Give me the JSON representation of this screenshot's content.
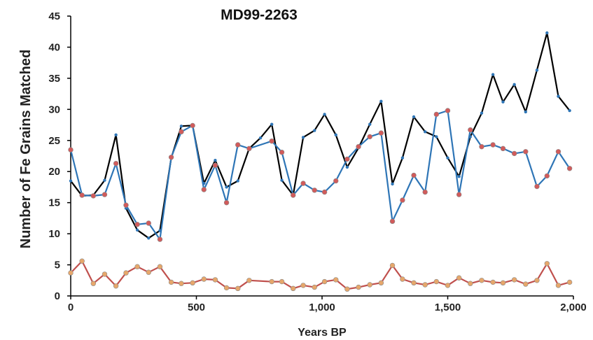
{
  "chart_data": {
    "type": "line",
    "title": "MD99-2263",
    "xlabel": "Years BP",
    "ylabel": "Number of Fe Grains Matched",
    "xlim": [
      0,
      2000
    ],
    "ylim": [
      0,
      45
    ],
    "x_ticks": [
      {
        "value": 0,
        "label": "0"
      },
      {
        "value": 500,
        "label": "500"
      },
      {
        "value": 1000,
        "label": "1,000"
      },
      {
        "value": 1500,
        "label": "1,500"
      },
      {
        "value": 2000,
        "label": "2,000"
      }
    ],
    "y_ticks": [
      {
        "value": 0,
        "label": "0"
      },
      {
        "value": 5,
        "label": "5"
      },
      {
        "value": 10,
        "label": "10"
      },
      {
        "value": 15,
        "label": "15"
      },
      {
        "value": 20,
        "label": "20"
      },
      {
        "value": 25,
        "label": "25"
      },
      {
        "value": 30,
        "label": "30"
      },
      {
        "value": 35,
        "label": "35"
      },
      {
        "value": 40,
        "label": "40"
      },
      {
        "value": 45,
        "label": "45"
      }
    ],
    "grid": false,
    "legend": "none",
    "series": [
      {
        "color": "#000000",
        "marker_color": "#2e75b6",
        "x": [
          0,
          45,
          90,
          135,
          180,
          220,
          265,
          310,
          355,
          400,
          440,
          485,
          530,
          575,
          620,
          665,
          710,
          755,
          800,
          840,
          885,
          925,
          970,
          1010,
          1055,
          1100,
          1145,
          1190,
          1235,
          1280,
          1320,
          1365,
          1410,
          1455,
          1500,
          1545,
          1590,
          1635,
          1680,
          1720,
          1765,
          1810,
          1855,
          1895,
          1940,
          1985
        ],
        "y": [
          18.5,
          16.1,
          16.2,
          18.6,
          25.9,
          14.1,
          10.6,
          9.3,
          10.5,
          22.2,
          27.3,
          27.4,
          18.1,
          21.8,
          17.5,
          18.5,
          23.7,
          25.4,
          27.6,
          18.6,
          16.2,
          25.5,
          26.6,
          29.2,
          25.9,
          20.7,
          23.8,
          27.6,
          31.3,
          18.0,
          22.2,
          28.8,
          26.4,
          25.6,
          22.2,
          19.2,
          25.6,
          29.4,
          35.6,
          31.2,
          34.0,
          29.6,
          36.3,
          42.3,
          32.1,
          29.8
        ]
      },
      {
        "color": "#2e75b6",
        "marker_color": "#d15b5b",
        "x": [
          0,
          45,
          90,
          135,
          180,
          220,
          265,
          310,
          355,
          400,
          440,
          485,
          530,
          575,
          620,
          665,
          710,
          800,
          840,
          885,
          925,
          970,
          1010,
          1055,
          1100,
          1145,
          1190,
          1235,
          1280,
          1320,
          1365,
          1410,
          1455,
          1500,
          1545,
          1590,
          1635,
          1680,
          1720,
          1765,
          1810,
          1855,
          1895,
          1940,
          1985
        ],
        "y": [
          23.5,
          16.2,
          16.1,
          16.3,
          21.3,
          14.6,
          11.5,
          11.7,
          9.1,
          22.3,
          26.4,
          27.4,
          17.1,
          21.0,
          15.0,
          24.3,
          23.7,
          24.9,
          23.1,
          16.2,
          18.1,
          17.0,
          16.7,
          18.5,
          22.0,
          24.0,
          25.6,
          26.2,
          12.0,
          15.4,
          19.4,
          16.7,
          29.2,
          29.8,
          16.3,
          26.7,
          24.0,
          24.3,
          23.7,
          22.9,
          23.2,
          17.6,
          19.3,
          23.2,
          20.5
        ]
      },
      {
        "color": "#c0504d",
        "marker_color": "#e7a76b",
        "x": [
          0,
          45,
          90,
          135,
          180,
          220,
          265,
          310,
          355,
          400,
          440,
          485,
          530,
          575,
          620,
          665,
          710,
          800,
          840,
          885,
          925,
          970,
          1010,
          1055,
          1100,
          1145,
          1190,
          1235,
          1280,
          1320,
          1365,
          1410,
          1455,
          1500,
          1545,
          1590,
          1635,
          1680,
          1720,
          1765,
          1810,
          1855,
          1895,
          1940,
          1985
        ],
        "y": [
          3.7,
          5.6,
          2.0,
          3.5,
          1.6,
          3.7,
          4.7,
          3.8,
          4.7,
          2.2,
          2.0,
          2.1,
          2.7,
          2.6,
          1.3,
          1.2,
          2.5,
          2.3,
          2.3,
          1.2,
          1.7,
          1.4,
          2.3,
          2.6,
          1.1,
          1.4,
          1.8,
          2.1,
          4.9,
          2.7,
          2.1,
          1.8,
          2.3,
          1.7,
          2.9,
          2.0,
          2.5,
          2.2,
          2.1,
          2.6,
          1.9,
          2.5,
          5.2,
          1.7,
          2.2
        ]
      }
    ]
  }
}
